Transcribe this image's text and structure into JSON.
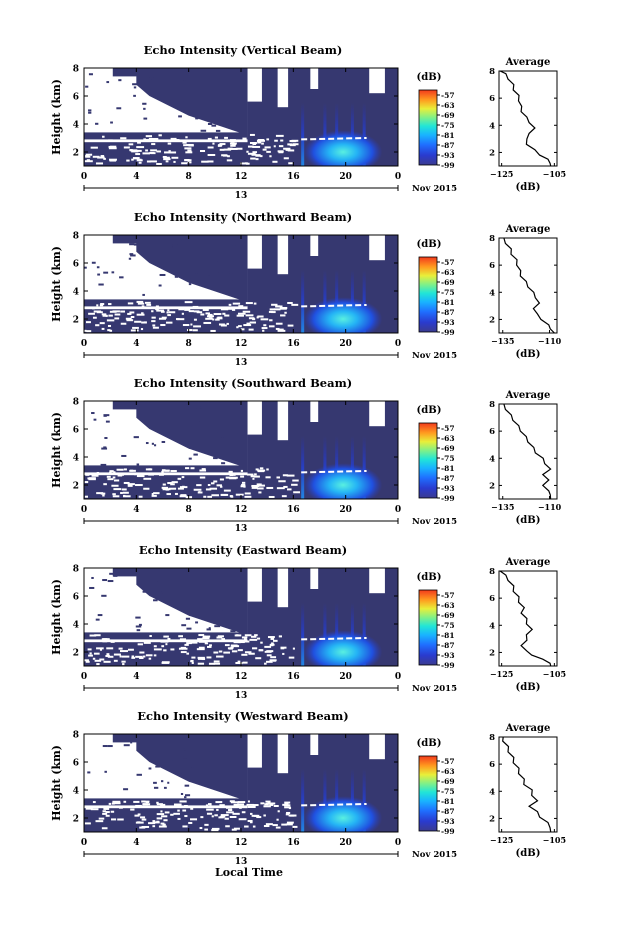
{
  "figure": {
    "date_label": "Nov 2015",
    "xlabel": "Local Time",
    "day_label": "13",
    "colorbar_unit": "(dB)",
    "profile_title": "Average",
    "profile_xlabel": "(dB)",
    "ylabel": "Height (km)"
  },
  "chart_data": [
    {
      "type": "heatmap",
      "title": "Echo Intensity (Vertical Beam)",
      "ylabel": "Height (km)",
      "xlabel": "",
      "x_ticks": [
        "0",
        "4",
        "8",
        "12",
        "16",
        "20",
        "0"
      ],
      "xlim": [
        0,
        24
      ],
      "y_ticks": [
        "2",
        "4",
        "6",
        "8"
      ],
      "ylim": [
        1,
        8
      ],
      "colorbar": {
        "label": "(dB)",
        "ticks": [
          "-57",
          "-63",
          "-69",
          "-75",
          "-81",
          "-87",
          "-93",
          "-99"
        ],
        "range": [
          -99,
          -54
        ]
      },
      "profile": {
        "title": "Average",
        "xlabel": "(dB)",
        "x_ticks": [
          "-125",
          "-105"
        ],
        "xlim": [
          -126,
          -104
        ],
        "y_ticks": [
          "2",
          "4",
          "6",
          "8"
        ],
        "ylim": [
          1,
          8
        ],
        "points": [
          [
            -107,
            1.0
          ],
          [
            -106,
            1.2
          ],
          [
            -108,
            1.5
          ],
          [
            -110,
            1.8
          ],
          [
            -113,
            2.2
          ],
          [
            -115,
            2.6
          ],
          [
            -116,
            3.0
          ],
          [
            -114,
            3.4
          ],
          [
            -113,
            3.8
          ],
          [
            -114,
            4.2
          ],
          [
            -116,
            4.6
          ],
          [
            -117,
            5.0
          ],
          [
            -118,
            5.4
          ],
          [
            -118,
            5.8
          ],
          [
            -119,
            6.2
          ],
          [
            -120,
            6.6
          ],
          [
            -121,
            7.0
          ],
          [
            -122,
            7.4
          ],
          [
            -124,
            7.8
          ],
          [
            -125,
            8.0
          ]
        ]
      }
    },
    {
      "type": "heatmap",
      "title": "Echo Intensity (Northward Beam)",
      "ylabel": "Height (km)",
      "xlabel": "",
      "x_ticks": [
        "0",
        "4",
        "8",
        "12",
        "16",
        "20",
        "0"
      ],
      "xlim": [
        0,
        24
      ],
      "y_ticks": [
        "2",
        "4",
        "6",
        "8"
      ],
      "ylim": [
        1,
        8
      ],
      "colorbar": {
        "label": "(dB)",
        "ticks": [
          "-57",
          "-63",
          "-69",
          "-75",
          "-81",
          "-87",
          "-93",
          "-99"
        ],
        "range": [
          -99,
          -54
        ]
      },
      "profile": {
        "title": "Average",
        "xlabel": "(dB)",
        "x_ticks": [
          "-135",
          "-110"
        ],
        "xlim": [
          -137,
          -106
        ],
        "y_ticks": [
          "2",
          "4",
          "6",
          "8"
        ],
        "ylim": [
          1,
          8
        ],
        "points": [
          [
            -108,
            1.0
          ],
          [
            -109,
            1.3
          ],
          [
            -111,
            1.6
          ],
          [
            -114,
            2.0
          ],
          [
            -117,
            2.4
          ],
          [
            -118,
            2.8
          ],
          [
            -116,
            3.2
          ],
          [
            -117,
            3.6
          ],
          [
            -119,
            4.0
          ],
          [
            -121,
            4.4
          ],
          [
            -123,
            4.8
          ],
          [
            -125,
            5.2
          ],
          [
            -126,
            5.6
          ],
          [
            -127,
            6.0
          ],
          [
            -128,
            6.4
          ],
          [
            -130,
            6.8
          ],
          [
            -131,
            7.2
          ],
          [
            -133,
            7.6
          ],
          [
            -135,
            8.0
          ]
        ]
      }
    },
    {
      "type": "heatmap",
      "title": "Echo Intensity (Southward Beam)",
      "ylabel": "Height (km)",
      "xlabel": "",
      "x_ticks": [
        "0",
        "4",
        "8",
        "12",
        "16",
        "20",
        "0"
      ],
      "xlim": [
        0,
        24
      ],
      "y_ticks": [
        "2",
        "4",
        "6",
        "8"
      ],
      "ylim": [
        1,
        8
      ],
      "colorbar": {
        "label": "(dB)",
        "ticks": [
          "-57",
          "-63",
          "-69",
          "-75",
          "-81",
          "-87",
          "-93",
          "-99"
        ],
        "range": [
          -99,
          -54
        ]
      },
      "profile": {
        "title": "Average",
        "xlabel": "(dB)",
        "x_ticks": [
          "-135",
          "-110"
        ],
        "xlim": [
          -137,
          -106
        ],
        "y_ticks": [
          "2",
          "4",
          "6",
          "8"
        ],
        "ylim": [
          1,
          8
        ],
        "points": [
          [
            -110,
            1.0
          ],
          [
            -109,
            1.3
          ],
          [
            -111,
            1.6
          ],
          [
            -113,
            2.0
          ],
          [
            -111,
            2.4
          ],
          [
            -113,
            2.8
          ],
          [
            -110,
            3.2
          ],
          [
            -112,
            3.6
          ],
          [
            -114,
            4.0
          ],
          [
            -117,
            4.4
          ],
          [
            -119,
            4.8
          ],
          [
            -121,
            5.2
          ],
          [
            -123,
            5.6
          ],
          [
            -125,
            6.0
          ],
          [
            -127,
            6.4
          ],
          [
            -129,
            6.8
          ],
          [
            -131,
            7.2
          ],
          [
            -133,
            7.6
          ],
          [
            -135,
            8.0
          ]
        ]
      }
    },
    {
      "type": "heatmap",
      "title": "Echo Intensity (Eastward Beam)",
      "ylabel": "Height (km)",
      "xlabel": "",
      "x_ticks": [
        "0",
        "4",
        "8",
        "12",
        "16",
        "20",
        "0"
      ],
      "xlim": [
        0,
        24
      ],
      "y_ticks": [
        "2",
        "4",
        "6",
        "8"
      ],
      "ylim": [
        1,
        8
      ],
      "colorbar": {
        "label": "(dB)",
        "ticks": [
          "-57",
          "-63",
          "-69",
          "-75",
          "-81",
          "-87",
          "-93",
          "-99"
        ],
        "range": [
          -99,
          -54
        ]
      },
      "profile": {
        "title": "Average",
        "xlabel": "(dB)",
        "x_ticks": [
          "-125",
          "-105"
        ],
        "xlim": [
          -126,
          -104
        ],
        "y_ticks": [
          "2",
          "4",
          "6",
          "8"
        ],
        "ylim": [
          1,
          8
        ],
        "points": [
          [
            -107,
            1.0
          ],
          [
            -106,
            1.2
          ],
          [
            -110,
            1.5
          ],
          [
            -113,
            1.8
          ],
          [
            -116,
            2.1
          ],
          [
            -117,
            2.5
          ],
          [
            -116,
            2.9
          ],
          [
            -115,
            3.3
          ],
          [
            -114,
            3.7
          ],
          [
            -115,
            4.1
          ],
          [
            -116,
            4.5
          ],
          [
            -117,
            4.9
          ],
          [
            -117,
            5.3
          ],
          [
            -118,
            5.7
          ],
          [
            -119,
            6.1
          ],
          [
            -120,
            6.5
          ],
          [
            -121,
            6.9
          ],
          [
            -122,
            7.3
          ],
          [
            -124,
            7.7
          ],
          [
            -125,
            8.0
          ]
        ]
      }
    },
    {
      "type": "heatmap",
      "title": "Echo Intensity (Westward Beam)",
      "ylabel": "Height (km)",
      "xlabel": "Local Time",
      "x_ticks": [
        "0",
        "4",
        "8",
        "12",
        "16",
        "20",
        "0"
      ],
      "xlim": [
        0,
        24
      ],
      "y_ticks": [
        "2",
        "4",
        "6",
        "8"
      ],
      "ylim": [
        1,
        8
      ],
      "colorbar": {
        "label": "(dB)",
        "ticks": [
          "-57",
          "-63",
          "-69",
          "-75",
          "-81",
          "-87",
          "-93",
          "-99"
        ],
        "range": [
          -99,
          -54
        ]
      },
      "profile": {
        "title": "Average",
        "xlabel": "(dB)",
        "x_ticks": [
          "-125",
          "-105"
        ],
        "xlim": [
          -126,
          -104
        ],
        "y_ticks": [
          "2",
          "4",
          "6",
          "8"
        ],
        "ylim": [
          1,
          8
        ],
        "points": [
          [
            -107,
            1.0
          ],
          [
            -106,
            1.3
          ],
          [
            -108,
            1.7
          ],
          [
            -110,
            2.1
          ],
          [
            -112,
            2.5
          ],
          [
            -114,
            2.9
          ],
          [
            -112,
            3.3
          ],
          [
            -113,
            3.7
          ],
          [
            -114,
            4.1
          ],
          [
            -116,
            4.5
          ],
          [
            -117,
            4.9
          ],
          [
            -118,
            5.3
          ],
          [
            -119,
            5.7
          ],
          [
            -120,
            6.1
          ],
          [
            -121,
            6.5
          ],
          [
            -122,
            6.9
          ],
          [
            -123,
            7.3
          ],
          [
            -124,
            7.7
          ],
          [
            -125,
            8.0
          ]
        ]
      }
    }
  ]
}
